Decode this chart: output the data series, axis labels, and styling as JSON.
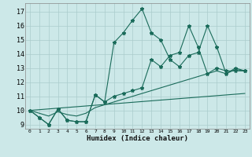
{
  "xlabel": "Humidex (Indice chaleur)",
  "bg_color": "#cce8e8",
  "grid_color": "#aacccc",
  "line_color": "#1a6b5a",
  "xlim_min": -0.5,
  "xlim_max": 23.5,
  "ylim_min": 8.7,
  "ylim_max": 17.6,
  "yticks": [
    9,
    10,
    11,
    12,
    13,
    14,
    15,
    16,
    17
  ],
  "xticks": [
    0,
    1,
    2,
    3,
    4,
    5,
    6,
    7,
    8,
    9,
    10,
    11,
    12,
    13,
    14,
    15,
    16,
    17,
    18,
    19,
    20,
    21,
    22,
    23
  ],
  "line1_x": [
    0,
    1,
    2,
    3,
    4,
    5,
    6,
    7,
    8,
    9,
    10,
    11,
    12,
    13,
    14,
    15,
    16,
    17,
    18,
    19,
    20,
    21,
    22,
    23
  ],
  "line1_y": [
    10.0,
    9.5,
    9.0,
    10.1,
    9.3,
    9.2,
    9.2,
    11.1,
    10.6,
    14.8,
    15.5,
    16.4,
    17.2,
    15.5,
    15.0,
    13.6,
    13.1,
    13.9,
    14.1,
    16.0,
    14.5,
    12.6,
    13.0,
    12.8
  ],
  "line2_x": [
    0,
    1,
    2,
    3,
    4,
    5,
    6,
    7,
    8,
    9,
    10,
    11,
    12,
    13,
    14,
    15,
    16,
    17,
    18,
    19,
    20,
    21,
    22,
    23
  ],
  "line2_y": [
    10.0,
    9.5,
    9.0,
    10.1,
    9.3,
    9.2,
    9.2,
    11.1,
    10.6,
    11.0,
    11.2,
    11.4,
    11.6,
    13.6,
    13.1,
    13.9,
    14.1,
    16.0,
    14.5,
    12.6,
    13.0,
    12.8,
    12.8,
    12.8
  ],
  "line3_x": [
    0,
    1,
    2,
    3,
    4,
    5,
    6,
    7,
    8,
    9,
    10,
    11,
    12,
    13,
    14,
    15,
    16,
    17,
    18,
    19,
    20,
    21,
    22,
    23
  ],
  "line3_y": [
    10.0,
    9.8,
    9.6,
    9.9,
    9.7,
    9.6,
    9.8,
    10.2,
    10.4,
    10.6,
    10.8,
    11.0,
    11.2,
    11.4,
    11.6,
    11.8,
    12.0,
    12.2,
    12.4,
    12.6,
    12.8,
    12.6,
    12.9,
    12.8
  ],
  "line4_x": [
    0,
    23
  ],
  "line4_y": [
    10.0,
    11.2
  ]
}
